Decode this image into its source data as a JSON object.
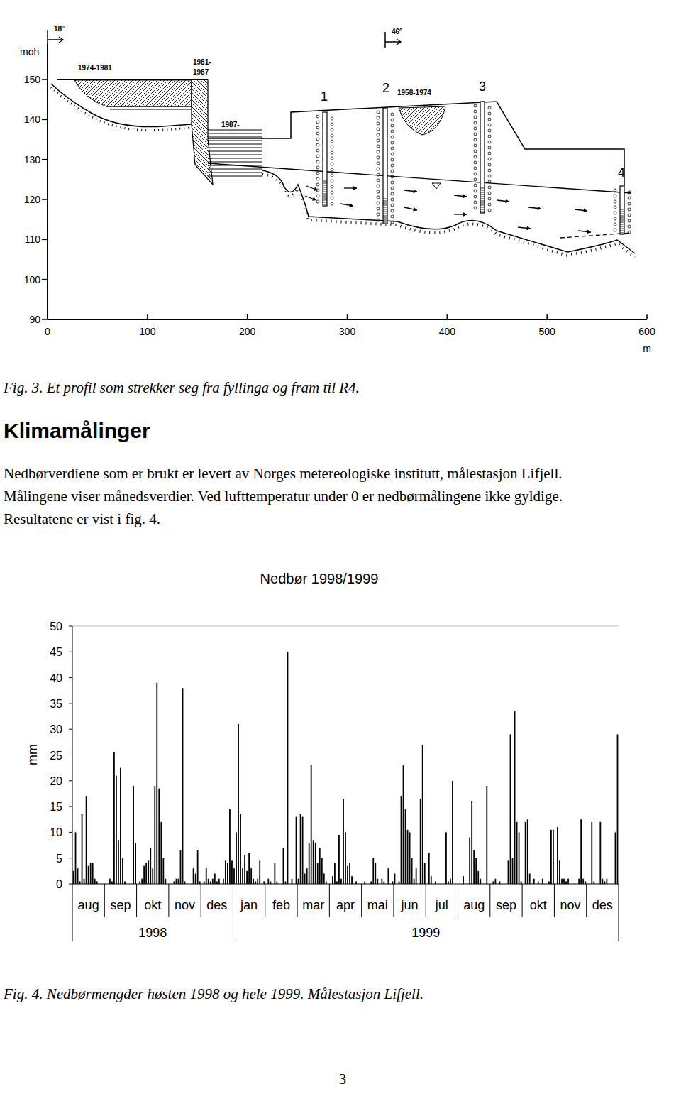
{
  "figure3": {
    "diagram": {
      "y_label": "moh",
      "x_label": "m",
      "yticks": [
        150,
        140,
        130,
        120,
        110,
        100,
        90
      ],
      "xticks": [
        0,
        100,
        200,
        300,
        400,
        500,
        600
      ],
      "annotations": [
        "18°",
        "46°",
        "1974-1981",
        "1981-",
        "1987",
        "1987-",
        "1958-1974"
      ],
      "wells": [
        "1",
        "2",
        "3",
        "4"
      ]
    },
    "caption": "Fig. 3. Et profil som strekker seg fra fyllinga og fram til R4."
  },
  "text": {
    "heading": "Klimamålinger",
    "lines": [
      "Nedbørverdiene som er brukt er levert av Norges metereologiske institutt, målestasjon Lifjell.",
      "Målingene viser månedsverdier. Ved lufttemperatur under 0 er nedbørmålingene ikke gyldige.",
      "Resultatene er vist i fig. 4."
    ]
  },
  "chart_data": {
    "type": "bar",
    "title": "Nedbør 1998/1999",
    "y_label": "mm",
    "color": "#000000",
    "grid": false,
    "ylim": [
      0,
      50
    ],
    "yticks": [
      0,
      5,
      10,
      15,
      20,
      25,
      30,
      35,
      40,
      45,
      50
    ],
    "categories": [
      null,
      null,
      null,
      null,
      null,
      null,
      null,
      "aug",
      null,
      null,
      null,
      null,
      null,
      null,
      null,
      null,
      null,
      null,
      null,
      null,
      null,
      null,
      "sep",
      null,
      null,
      null,
      null,
      null,
      null,
      null,
      null,
      null,
      null,
      null,
      null,
      null,
      null,
      "okt",
      null,
      null,
      null,
      null,
      null,
      null,
      null,
      null,
      null,
      null,
      null,
      null,
      null,
      null,
      "nov",
      null,
      null,
      null,
      null,
      null,
      null,
      null,
      null,
      null,
      null,
      null,
      null,
      null,
      null,
      "des",
      null,
      null,
      null,
      null,
      null,
      null,
      null,
      null,
      null,
      null,
      null,
      null,
      null,
      null,
      "jan",
      null,
      null,
      null,
      null,
      null,
      null,
      null,
      null,
      null,
      null,
      null,
      null,
      null,
      null,
      "feb",
      null,
      null,
      null,
      null,
      null,
      null,
      null,
      null,
      null,
      null,
      null,
      null,
      null,
      null,
      "mar",
      null,
      null,
      null,
      null,
      null,
      null,
      null,
      null,
      null,
      null,
      null,
      null,
      null,
      null,
      "apr",
      null,
      null,
      null,
      null,
      null,
      null,
      null,
      null,
      null,
      null,
      null,
      null,
      null,
      null,
      "mai",
      null,
      null,
      null,
      null,
      null,
      null,
      null,
      null,
      null,
      null,
      null,
      null,
      null,
      null,
      "jun",
      null,
      null,
      null,
      null,
      null,
      null,
      null,
      null,
      null,
      null,
      null,
      null,
      null,
      null,
      "jul",
      null,
      null,
      null,
      null,
      null,
      null,
      null,
      null,
      null,
      null,
      null,
      null,
      null,
      null,
      "aug",
      null,
      null,
      null,
      null,
      null,
      null,
      null,
      null,
      null,
      null,
      null,
      null,
      null,
      null,
      "sep",
      null,
      null,
      null,
      null,
      null,
      null,
      null,
      null,
      null,
      null,
      null,
      null,
      null,
      null,
      "okt",
      null,
      null,
      null,
      null,
      null,
      null,
      null,
      null,
      null,
      null,
      null,
      null,
      null,
      null,
      "nov",
      null,
      null,
      null,
      null,
      null,
      null,
      null,
      null,
      null,
      null,
      null,
      null,
      null,
      null,
      "des",
      null,
      null,
      null,
      null,
      null,
      null,
      null
    ],
    "values": [
      2.5,
      10,
      3,
      0.5,
      13.5,
      1,
      17,
      3.5,
      4,
      4,
      1,
      0.5,
      0,
      0,
      0,
      0,
      0,
      1,
      0.5,
      25.5,
      21,
      8.5,
      22.5,
      5,
      0.5,
      0,
      0,
      0,
      19,
      8,
      0,
      0.5,
      1,
      3.5,
      4,
      4.5,
      7,
      3,
      19,
      39,
      18.5,
      12,
      5,
      1,
      0,
      0,
      0,
      0.5,
      1,
      1,
      6.5,
      38,
      0.5,
      0,
      0,
      0,
      3,
      2,
      6.5,
      0.5,
      0,
      0.5,
      3,
      1,
      0.5,
      1,
      2,
      0.5,
      1,
      0,
      1,
      4.5,
      4,
      14.5,
      4.5,
      3,
      10,
      31,
      13.5,
      3,
      5.5,
      2.5,
      6,
      3,
      1,
      0.5,
      1,
      4.5,
      0,
      0.5,
      0,
      1,
      0.5,
      0,
      4,
      0.5,
      0,
      0,
      7,
      0.5,
      45,
      0,
      1,
      0,
      13,
      1,
      13.5,
      13,
      2,
      3,
      8,
      23,
      8.5,
      8,
      4,
      7,
      5,
      2,
      0.5,
      0,
      0,
      1.5,
      4,
      0.5,
      9.5,
      1,
      16.5,
      10,
      3.5,
      4,
      1.5,
      0,
      0.5,
      0,
      0,
      0,
      0.5,
      0,
      0,
      0.5,
      5,
      4,
      1,
      0,
      1,
      0.5,
      0,
      3,
      0,
      0.5,
      2,
      0,
      0.5,
      17,
      23,
      14.5,
      10.5,
      10,
      5,
      1,
      3,
      0,
      16.5,
      27,
      4,
      0,
      6,
      1.5,
      0,
      0.5,
      0,
      0,
      0,
      0,
      10,
      0.5,
      1,
      20,
      0,
      0,
      0,
      0,
      1.5,
      0,
      0,
      9,
      16,
      6.5,
      5,
      2.5,
      1,
      0,
      0,
      19,
      0,
      0,
      0.5,
      1,
      0,
      0.5,
      0,
      0,
      0,
      4.5,
      29,
      5,
      33.5,
      12,
      10,
      0.5,
      0,
      12,
      12.5,
      2,
      0,
      1,
      0,
      0.5,
      0,
      1,
      0,
      0,
      0.5,
      10.5,
      10.5,
      0,
      11,
      4.5,
      1,
      1,
      0.5,
      1,
      0,
      0,
      0,
      0,
      1,
      12.5,
      1,
      0.5,
      0,
      0,
      12,
      0.5,
      0,
      0,
      12,
      1,
      0.5,
      1,
      0,
      0,
      0,
      10,
      29
    ],
    "x_groups": [
      {
        "label": "1998",
        "start": 0,
        "end": 74
      },
      {
        "label": "1999",
        "start": 75,
        "end": 254
      }
    ]
  },
  "figure4_caption": "Fig. 4. Nedbørmengder høsten 1998 og hele 1999. Målestasjon Lifjell.",
  "page_number": 3
}
